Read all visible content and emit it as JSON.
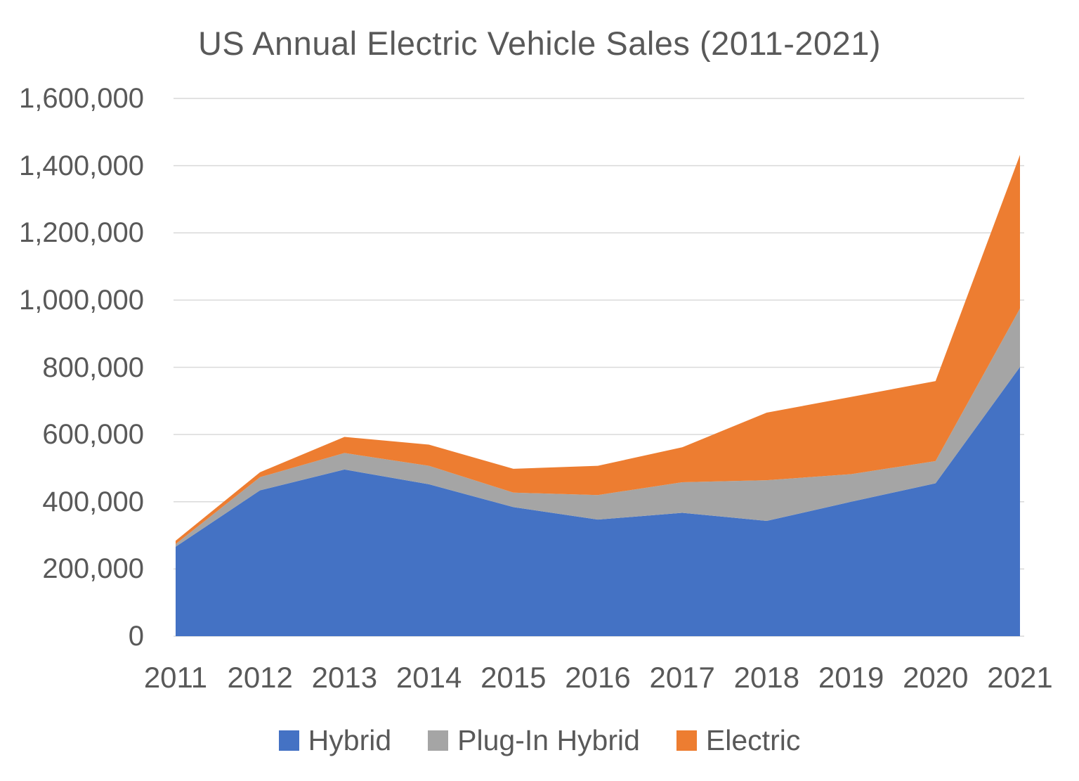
{
  "page": {
    "background_color": "#FFFFFF"
  },
  "chart_data": {
    "type": "area",
    "stacked": true,
    "title": "US Annual Electric Vehicle Sales (2011-2021)",
    "categories": [
      "2011",
      "2012",
      "2013",
      "2014",
      "2015",
      "2016",
      "2017",
      "2018",
      "2019",
      "2020",
      "2021"
    ],
    "series": [
      {
        "name": "Hybrid",
        "color": "#4472C4",
        "values": [
          266000,
          434000,
          496000,
          452000,
          384000,
          347000,
          367000,
          343000,
          400000,
          455000,
          801000
        ]
      },
      {
        "name": "Plug-In Hybrid",
        "color": "#A5A5A5",
        "values": [
          8000,
          39000,
          49000,
          55000,
          43000,
          73000,
          91000,
          121000,
          82000,
          66000,
          174000
        ]
      },
      {
        "name": "Electric",
        "color": "#ED7D31",
        "values": [
          10000,
          15000,
          48000,
          63000,
          71000,
          87000,
          104000,
          201000,
          230000,
          238000,
          457000
        ]
      }
    ],
    "stack_totals": [
      284000,
      488000,
      593000,
      570000,
      498000,
      507000,
      562000,
      665000,
      712000,
      759000,
      1432000
    ],
    "xlabel": "",
    "ylabel": "",
    "ylim": [
      0,
      1600000
    ],
    "yticks": [
      {
        "value": 0,
        "label": "0"
      },
      {
        "value": 200000,
        "label": "200,000"
      },
      {
        "value": 400000,
        "label": "400,000"
      },
      {
        "value": 600000,
        "label": "600,000"
      },
      {
        "value": 800000,
        "label": "800,000"
      },
      {
        "value": 1000000,
        "label": "1,000,000"
      },
      {
        "value": 1200000,
        "label": "1,200,000"
      },
      {
        "value": 1400000,
        "label": "1,400,000"
      },
      {
        "value": 1600000,
        "label": "1,600,000"
      }
    ],
    "grid": true,
    "legend_position": "bottom",
    "colors": {
      "grid": "#D9D9D9",
      "axis_text": "#595959",
      "title_text": "#595959"
    }
  }
}
